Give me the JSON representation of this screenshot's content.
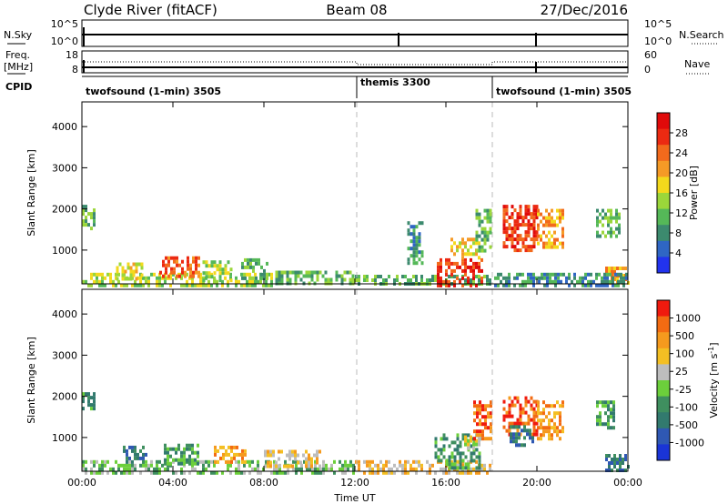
{
  "header": {
    "station": "Clyde River (fitACF)",
    "beam": "Beam 08",
    "date": "27/Dec/2016"
  },
  "top_panels": {
    "nsky_label": "N.Sky",
    "nsky_ticks": [
      "10^5",
      "10^0"
    ],
    "nsearch_label": "N.Search",
    "nsearch_ticks": [
      "10^5",
      "10^0"
    ],
    "freq_label_1": "Freq.",
    "freq_label_2": "[MHz]",
    "freq_ticks": [
      "18",
      "8"
    ],
    "nave_label": "Nave",
    "nave_ticks": [
      "60",
      "0"
    ],
    "cpid_label": "CPID",
    "cpid_segments": [
      {
        "label": "twofsound (1-min) 3505",
        "start": 0,
        "end": 12
      },
      {
        "label": "themis 3300",
        "start": 12,
        "end": 18
      },
      {
        "label": "twofsound (1-min) 3505",
        "start": 18,
        "end": 24
      }
    ]
  },
  "chart_data": [
    {
      "type": "heatmap",
      "quantity": "power",
      "ylabel": "Slant Range [km]",
      "xlabel": "",
      "xlim": [
        0,
        24
      ],
      "ylim": [
        180,
        4600
      ],
      "yticks": [
        "1000",
        "2000",
        "3000",
        "4000"
      ],
      "xticks": [
        "00:00",
        "04:00",
        "08:00",
        "12:00",
        "16:00",
        "20:00",
        "00:00"
      ],
      "colorbar_label": "Power [dB]",
      "colorbar_ticks": [
        "4",
        "8",
        "12",
        "16",
        "20",
        "24",
        "28"
      ],
      "colorbar_colors": [
        "#2233ee",
        "#2f66c4",
        "#3c8a6e",
        "#55b858",
        "#9bd63a",
        "#f3d91c",
        "#f59a26",
        "#f26a1c",
        "#ec2a12",
        "#e00a0a"
      ],
      "regions": [
        {
          "t0": 0.0,
          "t1": 0.6,
          "r0": 1500,
          "r1": 2100,
          "level": 3
        },
        {
          "t0": 0.0,
          "t1": 8.5,
          "r0": 180,
          "r1": 450,
          "level": 4
        },
        {
          "t0": 1.5,
          "t1": 2.6,
          "r0": 300,
          "r1": 700,
          "level": 5
        },
        {
          "t0": 3.4,
          "t1": 5.1,
          "r0": 350,
          "r1": 850,
          "level": 7
        },
        {
          "t0": 5.3,
          "t1": 6.6,
          "r0": 300,
          "r1": 750,
          "level": 4
        },
        {
          "t0": 7.0,
          "t1": 8.1,
          "r0": 300,
          "r1": 800,
          "level": 3
        },
        {
          "t0": 8.5,
          "t1": 12.0,
          "r0": 180,
          "r1": 500,
          "level": 3
        },
        {
          "t0": 12.0,
          "t1": 18.0,
          "r0": 180,
          "r1": 400,
          "level": 3
        },
        {
          "t0": 14.3,
          "t1": 15.0,
          "r0": 700,
          "r1": 1700,
          "level": 2
        },
        {
          "t0": 15.6,
          "t1": 17.6,
          "r0": 180,
          "r1": 800,
          "level": 8
        },
        {
          "t0": 16.2,
          "t1": 17.5,
          "r0": 800,
          "r1": 1300,
          "level": 5
        },
        {
          "t0": 17.3,
          "t1": 18.0,
          "r0": 1000,
          "r1": 2000,
          "level": 3
        },
        {
          "t0": 18.5,
          "t1": 20.0,
          "r0": 1000,
          "r1": 2100,
          "level": 8
        },
        {
          "t0": 20.0,
          "t1": 21.2,
          "r0": 1100,
          "r1": 2000,
          "level": 6
        },
        {
          "t0": 22.6,
          "t1": 23.6,
          "r0": 1300,
          "r1": 2000,
          "level": 3
        },
        {
          "t0": 23.0,
          "t1": 24.0,
          "r0": 180,
          "r1": 600,
          "level": 6
        },
        {
          "t0": 18.0,
          "t1": 24.0,
          "r0": 180,
          "r1": 450,
          "level": 2
        }
      ]
    },
    {
      "type": "heatmap",
      "quantity": "velocity",
      "ylabel": "Slant Range [km]",
      "xlabel": "Time UT",
      "xlim": [
        0,
        24
      ],
      "ylim": [
        180,
        4600
      ],
      "yticks": [
        "1000",
        "2000",
        "3000",
        "4000"
      ],
      "xticks": [
        "00:00",
        "04:00",
        "08:00",
        "12:00",
        "16:00",
        "20:00",
        "00:00"
      ],
      "colorbar_label": "Velocity [m s^-1]",
      "colorbar_ticks": [
        "1000",
        "500",
        "100",
        "25",
        "-25",
        "-100",
        "-500",
        "-1000"
      ],
      "colorbar_colors": [
        "#1a34d6",
        "#2f58b3",
        "#327a6e",
        "#3f8f5f",
        "#6ccf3b",
        "#bdbdbd",
        "#f4bf23",
        "#f59a1e",
        "#f36b12",
        "#f01a0e"
      ],
      "regions": [
        {
          "t0": 0.0,
          "t1": 0.6,
          "r0": 1600,
          "r1": 2100,
          "level": 3
        },
        {
          "t0": 0.0,
          "t1": 12.0,
          "r0": 180,
          "r1": 450,
          "level": 4
        },
        {
          "t0": 1.8,
          "t1": 2.8,
          "r0": 400,
          "r1": 800,
          "level": 2
        },
        {
          "t0": 3.6,
          "t1": 5.1,
          "r0": 350,
          "r1": 850,
          "level": 3
        },
        {
          "t0": 5.8,
          "t1": 7.2,
          "r0": 400,
          "r1": 800,
          "level": 7
        },
        {
          "t0": 8.0,
          "t1": 10.5,
          "r0": 300,
          "r1": 700,
          "level": 6
        },
        {
          "t0": 12.0,
          "t1": 18.0,
          "r0": 180,
          "r1": 450,
          "level": 6
        },
        {
          "t0": 15.5,
          "t1": 17.5,
          "r0": 250,
          "r1": 1100,
          "level": 3
        },
        {
          "t0": 16.8,
          "t1": 17.5,
          "r0": 700,
          "r1": 1050,
          "level": 5
        },
        {
          "t0": 17.2,
          "t1": 18.0,
          "r0": 1000,
          "r1": 1900,
          "level": 8
        },
        {
          "t0": 18.5,
          "t1": 20.0,
          "r0": 1100,
          "r1": 2000,
          "level": 8
        },
        {
          "t0": 18.8,
          "t1": 19.8,
          "r0": 800,
          "r1": 1300,
          "level": 2
        },
        {
          "t0": 20.0,
          "t1": 21.1,
          "r0": 1000,
          "r1": 1900,
          "level": 7
        },
        {
          "t0": 22.6,
          "t1": 23.4,
          "r0": 1200,
          "r1": 1900,
          "level": 3
        },
        {
          "t0": 23.0,
          "t1": 24.0,
          "r0": 180,
          "r1": 600,
          "level": 2
        }
      ]
    }
  ]
}
